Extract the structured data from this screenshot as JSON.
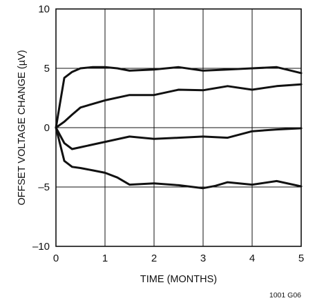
{
  "chart_data": {
    "type": "line",
    "title": "",
    "xlabel": "TIME (MONTHS)",
    "ylabel": "OFFSET VOLTAGE CHANGE (µV)",
    "xlim": [
      0,
      5
    ],
    "ylim": [
      -10,
      10
    ],
    "x_ticks": [
      "0",
      "1",
      "2",
      "3",
      "4",
      "5"
    ],
    "y_ticks": [
      "10",
      "5",
      "0",
      "–5",
      "–10"
    ],
    "grid": true,
    "legend": "none",
    "footnote": "1001 G06",
    "series": [
      {
        "x": [
          0,
          0.08,
          0.17,
          0.33,
          0.5,
          0.75,
          1.0,
          1.25,
          1.5,
          2.0,
          2.5,
          3.0,
          3.5,
          4.0,
          4.5,
          5.0
        ],
        "y": [
          0,
          2.0,
          4.2,
          4.7,
          5.0,
          5.1,
          5.1,
          5.0,
          4.8,
          4.9,
          5.1,
          4.8,
          4.9,
          5.0,
          5.1,
          4.6
        ]
      },
      {
        "x": [
          0,
          0.17,
          0.33,
          0.5,
          1.0,
          1.5,
          2.0,
          2.5,
          3.0,
          3.5,
          4.0,
          4.5,
          5.0
        ],
        "y": [
          0,
          0.5,
          1.1,
          1.7,
          2.3,
          2.75,
          2.75,
          3.2,
          3.15,
          3.5,
          3.2,
          3.5,
          3.65
        ]
      },
      {
        "x": [
          0,
          0.17,
          0.33,
          0.5,
          1.0,
          1.5,
          2.0,
          2.5,
          3.0,
          3.5,
          4.0,
          4.5,
          5.0
        ],
        "y": [
          0,
          -1.3,
          -1.8,
          -1.65,
          -1.2,
          -0.75,
          -0.95,
          -0.85,
          -0.75,
          -0.85,
          -0.3,
          -0.15,
          -0.05
        ]
      },
      {
        "x": [
          0,
          0.17,
          0.33,
          0.5,
          0.75,
          1.0,
          1.25,
          1.5,
          2.0,
          2.5,
          3.0,
          3.25,
          3.5,
          4.0,
          4.5,
          5.0
        ],
        "y": [
          0,
          -2.8,
          -3.3,
          -3.4,
          -3.6,
          -3.8,
          -4.2,
          -4.8,
          -4.7,
          -4.85,
          -5.1,
          -4.9,
          -4.6,
          -4.8,
          -4.5,
          -4.95
        ]
      }
    ]
  }
}
